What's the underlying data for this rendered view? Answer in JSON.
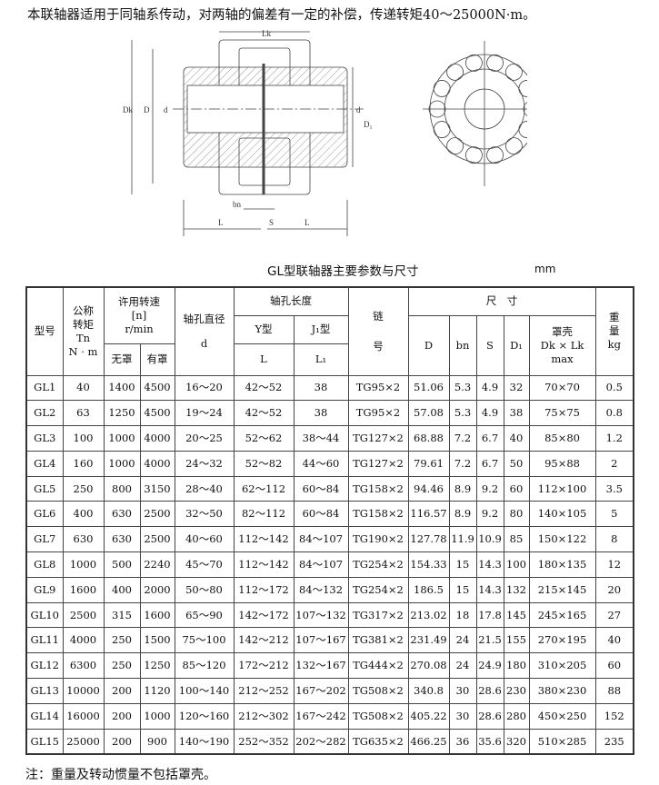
{
  "intro": "本联轴器适用于同轴系传动，对两轴的偏差有一定的补偿，传递转矩40～25000N·m。",
  "drawing": {
    "Lk": "Lk",
    "Dk": "Dk",
    "D": "D",
    "d": "d",
    "D1": "D₁",
    "bn": "bn",
    "L": "L",
    "S": "S"
  },
  "table_title": "GL型联轴器主要参数与尺寸",
  "unit": "mm",
  "headers": {
    "model": "型号",
    "torque": [
      "公称",
      "转矩",
      "Tn",
      "N · m"
    ],
    "speed": [
      "许用转速",
      "[n]",
      "r/min"
    ],
    "no_cover": "无罩",
    "with_cover": "有罩",
    "bore": [
      "轴孔直径",
      "d"
    ],
    "bore_len": "轴孔长度",
    "y_type": "Y型",
    "j_type": "J₁型",
    "L": "L",
    "L1": "L₁",
    "chain": [
      "链",
      "号"
    ],
    "dims": "尺　寸",
    "D": "D",
    "bn": "bn",
    "S": "S",
    "D1": "D₁",
    "cover": [
      "罩壳",
      "Dk × Lk",
      "max"
    ],
    "weight": [
      "重",
      "量",
      "kg"
    ]
  },
  "rows": [
    [
      "GL1",
      "40",
      "1400",
      "4500",
      "16～20",
      "42～52",
      "38",
      "TG95×2",
      "51.06",
      "5.3",
      "4.9",
      "32",
      "70×70",
      "0.5"
    ],
    [
      "GL2",
      "63",
      "1250",
      "4500",
      "19～24",
      "42～52",
      "38",
      "TG95×2",
      "57.08",
      "5.3",
      "4.9",
      "38",
      "75×75",
      "0.8"
    ],
    [
      "GL3",
      "100",
      "1000",
      "4000",
      "20～25",
      "52～62",
      "38～44",
      "TG127×2",
      "68.88",
      "7.2",
      "6.7",
      "40",
      "85×80",
      "1.2"
    ],
    [
      "GL4",
      "160",
      "1000",
      "4000",
      "24～32",
      "52～82",
      "44～60",
      "TG127×2",
      "79.61",
      "7.2",
      "6.7",
      "50",
      "95×88",
      "2"
    ],
    [
      "GL5",
      "250",
      "800",
      "3150",
      "28～40",
      "62～112",
      "60～84",
      "TG158×2",
      "94.46",
      "8.9",
      "9.2",
      "60",
      "112×100",
      "3.5"
    ],
    [
      "GL6",
      "400",
      "630",
      "2500",
      "32～50",
      "82～112",
      "60～84",
      "TG158×2",
      "116.57",
      "8.9",
      "9.2",
      "80",
      "140×105",
      "5"
    ],
    [
      "GL7",
      "630",
      "630",
      "2500",
      "40～60",
      "112～142",
      "84～107",
      "TG190×2",
      "127.78",
      "11.9",
      "10.9",
      "85",
      "150×122",
      "8"
    ],
    [
      "GL8",
      "1000",
      "500",
      "2240",
      "45～70",
      "112～142",
      "84～107",
      "TG254×2",
      "154.33",
      "15",
      "14.3",
      "100",
      "180×135",
      "12"
    ],
    [
      "GL9",
      "1600",
      "400",
      "2000",
      "50～80",
      "112～172",
      "84～132",
      "TG254×2",
      "186.5",
      "15",
      "14.3",
      "132",
      "215×145",
      "20"
    ],
    [
      "GL10",
      "2500",
      "315",
      "1600",
      "65～90",
      "142～172",
      "107～132",
      "TG317×2",
      "213.02",
      "18",
      "17.8",
      "145",
      "245×165",
      "27"
    ],
    [
      "GL11",
      "4000",
      "250",
      "1500",
      "75～100",
      "142～212",
      "107～167",
      "TG381×2",
      "231.49",
      "24",
      "21.5",
      "155",
      "270×195",
      "40"
    ],
    [
      "GL12",
      "6300",
      "250",
      "1250",
      "85～120",
      "172～212",
      "132～167",
      "TG444×2",
      "270.08",
      "24",
      "24.9",
      "180",
      "310×205",
      "60"
    ],
    [
      "GL13",
      "10000",
      "200",
      "1120",
      "100～140",
      "212～252",
      "167～202",
      "TG508×2",
      "340.8",
      "30",
      "28.6",
      "230",
      "380×230",
      "88"
    ],
    [
      "GL14",
      "16000",
      "200",
      "1000",
      "120～160",
      "212～302",
      "167～242",
      "TG508×2",
      "405.22",
      "30",
      "28.6",
      "280",
      "450×250",
      "152"
    ],
    [
      "GL15",
      "25000",
      "200",
      "900",
      "140～190",
      "252～352",
      "202～282",
      "TG635×2",
      "466.25",
      "36",
      "35.6",
      "320",
      "510×285",
      "235"
    ]
  ],
  "note": "注：重量及转动惯量不包括罩壳。"
}
